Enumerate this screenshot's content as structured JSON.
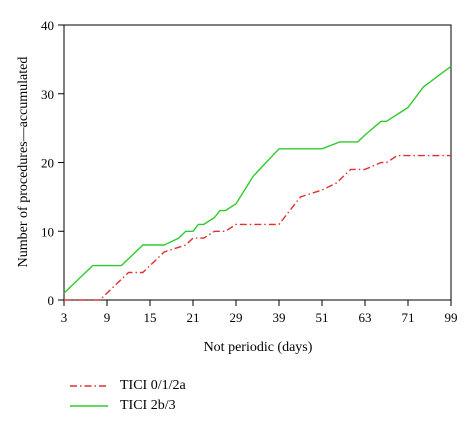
{
  "chart_data": {
    "type": "line",
    "title": "",
    "xlabel": "Not periodic (days)",
    "ylabel": "Number of procedures—accumulated",
    "x_ticks": [
      "3",
      "9",
      "15",
      "21",
      "29",
      "39",
      "51",
      "63",
      "71",
      "99"
    ],
    "y_ticks": [
      "0",
      "10",
      "20",
      "30",
      "40"
    ],
    "ylim": [
      0,
      40
    ],
    "grid": false,
    "legend_position": "bottom-left",
    "series": [
      {
        "name": "TICI 0/1/2a",
        "color": "#e03030",
        "dash": "dash-dot",
        "x": [
          3,
          6,
          8,
          12,
          14,
          17,
          20,
          21,
          23,
          25,
          27,
          29,
          34,
          39,
          42,
          45,
          51,
          55,
          59,
          61,
          63,
          66,
          67,
          69,
          71,
          81,
          99
        ],
        "y": [
          0,
          0,
          0,
          4,
          4,
          7,
          8,
          9,
          9,
          10,
          10,
          11,
          11,
          11,
          13,
          15,
          16,
          17,
          19,
          19,
          19,
          20,
          20,
          21,
          21,
          21,
          21
        ]
      },
      {
        "name": "TICI 2b/3",
        "color": "#2ecc2e",
        "dash": "solid",
        "x": [
          3,
          5,
          6,
          7,
          9,
          11,
          13,
          14,
          15,
          17,
          19,
          20,
          21,
          22,
          23,
          25,
          26,
          27,
          29,
          33,
          36,
          39,
          45,
          51,
          56,
          59,
          61,
          63,
          66,
          67,
          69,
          71,
          81,
          99
        ],
        "y": [
          1,
          3,
          4,
          5,
          5,
          5,
          7,
          8,
          8,
          8,
          9,
          10,
          10,
          11,
          11,
          12,
          13,
          13,
          14,
          18,
          20,
          22,
          22,
          22,
          23,
          23,
          23,
          24,
          26,
          26,
          27,
          28,
          31,
          34
        ]
      }
    ]
  }
}
